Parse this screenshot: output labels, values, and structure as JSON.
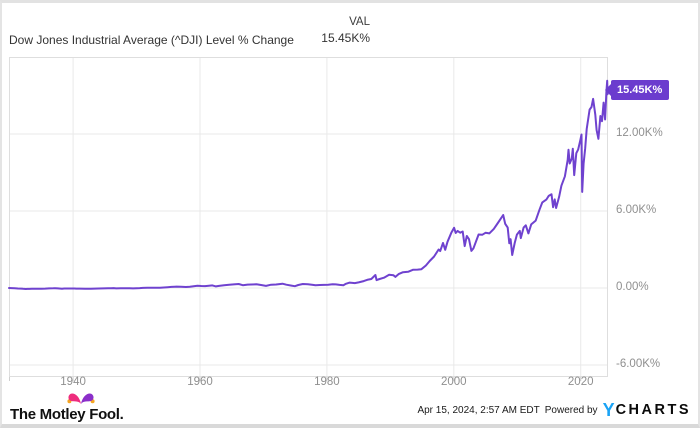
{
  "header": {
    "title": "Dow Jones Industrial Average (^DJI) Level % Change",
    "value_column_label": "VAL",
    "current_value": "15.45K%"
  },
  "chart_data": {
    "type": "line",
    "title": "Dow Jones Industrial Average (^DJI) Level % Change",
    "series_name": "^DJI Level % Change",
    "unit": "percent change",
    "line_color": "#6f42cf",
    "last_value_label": "15.45K%",
    "last_value": 15450,
    "grid": true,
    "legend_position": "none",
    "xlim": [
      1929.9,
      2024.3
    ],
    "ylim": [
      -6940,
      18000
    ],
    "x_ticks": [
      {
        "value": 1940,
        "label": "1940"
      },
      {
        "value": 1960,
        "label": "1960"
      },
      {
        "value": 1980,
        "label": "1980"
      },
      {
        "value": 2000,
        "label": "2000"
      },
      {
        "value": 2020,
        "label": "2020"
      }
    ],
    "y_ticks": [
      {
        "value": 12000,
        "label": "12.00K%"
      },
      {
        "value": 6000,
        "label": "6.00K%"
      },
      {
        "value": 0,
        "label": "0.00%"
      },
      {
        "value": -6000,
        "label": "-6.00K%"
      }
    ],
    "points": [
      [
        1929.9,
        -2
      ],
      [
        1930.3,
        -12
      ],
      [
        1930.8,
        -25
      ],
      [
        1931.3,
        -42
      ],
      [
        1931.8,
        -52
      ],
      [
        1932.1,
        -68
      ],
      [
        1932.55,
        -80
      ],
      [
        1932.8,
        -70
      ],
      [
        1933.1,
        -73
      ],
      [
        1933.5,
        -57
      ],
      [
        1934.0,
        -59
      ],
      [
        1934.5,
        -62
      ],
      [
        1935.0,
        -57
      ],
      [
        1935.6,
        -47
      ],
      [
        1936.2,
        -35
      ],
      [
        1936.9,
        -26
      ],
      [
        1937.2,
        -22
      ],
      [
        1937.6,
        -34
      ],
      [
        1938.25,
        -60
      ],
      [
        1938.6,
        -45
      ],
      [
        1939.0,
        -40
      ],
      [
        1939.35,
        -45
      ],
      [
        1939.7,
        -39
      ],
      [
        1940.3,
        -44
      ],
      [
        1940.45,
        -51
      ],
      [
        1941.0,
        -50
      ],
      [
        1941.9,
        -56
      ],
      [
        1942.3,
        -62
      ],
      [
        1942.8,
        -58
      ],
      [
        1943.4,
        -47
      ],
      [
        1944.0,
        -42
      ],
      [
        1944.8,
        -37
      ],
      [
        1945.5,
        -28
      ],
      [
        1945.95,
        -21
      ],
      [
        1946.4,
        -14
      ],
      [
        1946.8,
        -31
      ],
      [
        1947.5,
        -28
      ],
      [
        1948.4,
        -24
      ],
      [
        1948.9,
        -28
      ],
      [
        1949.45,
        -34
      ],
      [
        1950.0,
        -18
      ],
      [
        1950.5,
        -10
      ],
      [
        1951.0,
        2
      ],
      [
        1951.7,
        11
      ],
      [
        1952.4,
        15
      ],
      [
        1953.0,
        19
      ],
      [
        1953.7,
        11
      ],
      [
        1954.3,
        38
      ],
      [
        1954.9,
        62
      ],
      [
        1955.5,
        85
      ],
      [
        1956.0,
        100
      ],
      [
        1956.3,
        108
      ],
      [
        1957.0,
        96
      ],
      [
        1957.8,
        71
      ],
      [
        1958.4,
        95
      ],
      [
        1959.0,
        140
      ],
      [
        1959.6,
        172
      ],
      [
        1960.2,
        155
      ],
      [
        1960.8,
        145
      ],
      [
        1961.4,
        175
      ],
      [
        1961.95,
        198
      ],
      [
        1962.5,
        119
      ],
      [
        1963.0,
        160
      ],
      [
        1963.8,
        211
      ],
      [
        1964.6,
        245
      ],
      [
        1965.3,
        275
      ],
      [
        1966.1,
        306
      ],
      [
        1966.75,
        215
      ],
      [
        1967.5,
        262
      ],
      [
        1968.9,
        285
      ],
      [
        1969.5,
        240
      ],
      [
        1970.4,
        158
      ],
      [
        1971.2,
        250
      ],
      [
        1972.0,
        270
      ],
      [
        1973.0,
        329
      ],
      [
        1973.6,
        250
      ],
      [
        1974.4,
        180
      ],
      [
        1974.95,
        140
      ],
      [
        1975.5,
        230
      ],
      [
        1976.2,
        305
      ],
      [
        1977.0,
        283
      ],
      [
        1977.8,
        240
      ],
      [
        1978.2,
        203
      ],
      [
        1978.9,
        230
      ],
      [
        1979.5,
        240
      ],
      [
        1980.2,
        255
      ],
      [
        1980.9,
        293
      ],
      [
        1981.4,
        280
      ],
      [
        1982.0,
        240
      ],
      [
        1982.6,
        217
      ],
      [
        1983.0,
        320
      ],
      [
        1983.6,
        414
      ],
      [
        1984.4,
        380
      ],
      [
        1985.0,
        430
      ],
      [
        1985.8,
        531
      ],
      [
        1986.5,
        650
      ],
      [
        1987.0,
        700
      ],
      [
        1987.65,
        1011
      ],
      [
        1987.83,
        613
      ],
      [
        1988.3,
        700
      ],
      [
        1989.0,
        800
      ],
      [
        1989.8,
        1024
      ],
      [
        1990.5,
        990
      ],
      [
        1990.8,
        865
      ],
      [
        1991.3,
        1080
      ],
      [
        1992.0,
        1230
      ],
      [
        1992.8,
        1260
      ],
      [
        1993.6,
        1420
      ],
      [
        1994.3,
        1430
      ],
      [
        1994.9,
        1465
      ],
      [
        1995.6,
        1750
      ],
      [
        1996.2,
        2100
      ],
      [
        1996.9,
        2450
      ],
      [
        1997.6,
        3000
      ],
      [
        1997.85,
        2870
      ],
      [
        1998.3,
        3500
      ],
      [
        1998.65,
        2977
      ],
      [
        1999.0,
        3600
      ],
      [
        1999.6,
        4300
      ],
      [
        2000.05,
        4685
      ],
      [
        2000.3,
        4280
      ],
      [
        2000.6,
        4450
      ],
      [
        2001.0,
        4303
      ],
      [
        2001.4,
        4400
      ],
      [
        2001.72,
        3262
      ],
      [
        2002.05,
        4050
      ],
      [
        2002.4,
        3800
      ],
      [
        2002.78,
        2886
      ],
      [
        2003.1,
        3100
      ],
      [
        2003.9,
        4167
      ],
      [
        2004.5,
        4150
      ],
      [
        2005.0,
        4301
      ],
      [
        2005.6,
        4250
      ],
      [
        2006.3,
        4600
      ],
      [
        2007.0,
        5100
      ],
      [
        2007.78,
        5682
      ],
      [
        2008.1,
        5000
      ],
      [
        2008.5,
        4700
      ],
      [
        2008.75,
        3482
      ],
      [
        2008.95,
        3800
      ],
      [
        2009.2,
        2572
      ],
      [
        2009.6,
        3500
      ],
      [
        2009.95,
        4156
      ],
      [
        2010.4,
        4450
      ],
      [
        2010.55,
        3889
      ],
      [
        2011.0,
        4700
      ],
      [
        2011.35,
        4887
      ],
      [
        2011.75,
        4249
      ],
      [
        2012.2,
        4950
      ],
      [
        2012.9,
        5249
      ],
      [
        2013.5,
        6100
      ],
      [
        2013.95,
        6666
      ],
      [
        2014.6,
        6900
      ],
      [
        2014.95,
        7175
      ],
      [
        2015.4,
        7300
      ],
      [
        2015.65,
        6294
      ],
      [
        2015.9,
        6900
      ],
      [
        2016.12,
        6233
      ],
      [
        2016.6,
        7100
      ],
      [
        2016.95,
        7967
      ],
      [
        2017.5,
        8700
      ],
      [
        2017.95,
        9990
      ],
      [
        2018.07,
        10764
      ],
      [
        2018.27,
        9698
      ],
      [
        2018.6,
        10100
      ],
      [
        2018.76,
        10850
      ],
      [
        2018.97,
        8794
      ],
      [
        2019.3,
        10500
      ],
      [
        2019.6,
        10800
      ],
      [
        2019.95,
        11548
      ],
      [
        2020.12,
        11962
      ],
      [
        2020.23,
        7489
      ],
      [
        2020.45,
        9700
      ],
      [
        2020.7,
        10900
      ],
      [
        2020.95,
        12392
      ],
      [
        2021.4,
        13900
      ],
      [
        2021.7,
        14100
      ],
      [
        2021.95,
        14732
      ],
      [
        2022.3,
        13500
      ],
      [
        2022.5,
        12300
      ],
      [
        2022.78,
        11625
      ],
      [
        2023.1,
        13400
      ],
      [
        2023.35,
        13000
      ],
      [
        2023.6,
        14443
      ],
      [
        2023.85,
        13131
      ],
      [
        2024.05,
        15284
      ],
      [
        2024.18,
        16148
      ],
      [
        2024.24,
        15100
      ],
      [
        2024.3,
        15450
      ]
    ]
  },
  "footer": {
    "brand": "The Motley Fool.",
    "timestamp": "Apr 15, 2024, 2:57 AM EDT",
    "powered_by": "Powered by",
    "provider_y": "Y",
    "provider_rest": "CHARTS"
  },
  "colors": {
    "accent_purple": "#6f42cf",
    "tag_purple": "#6b3cce",
    "ycharts_blue": "#1aa3f5",
    "fool_pink": "#ee2d7d",
    "fool_purple": "#8b2fc9",
    "fool_gold": "#f5a623",
    "grid_gray": "#e9e9e9",
    "border_gray": "#dedede",
    "tick_label_gray": "#8f8f8f"
  }
}
